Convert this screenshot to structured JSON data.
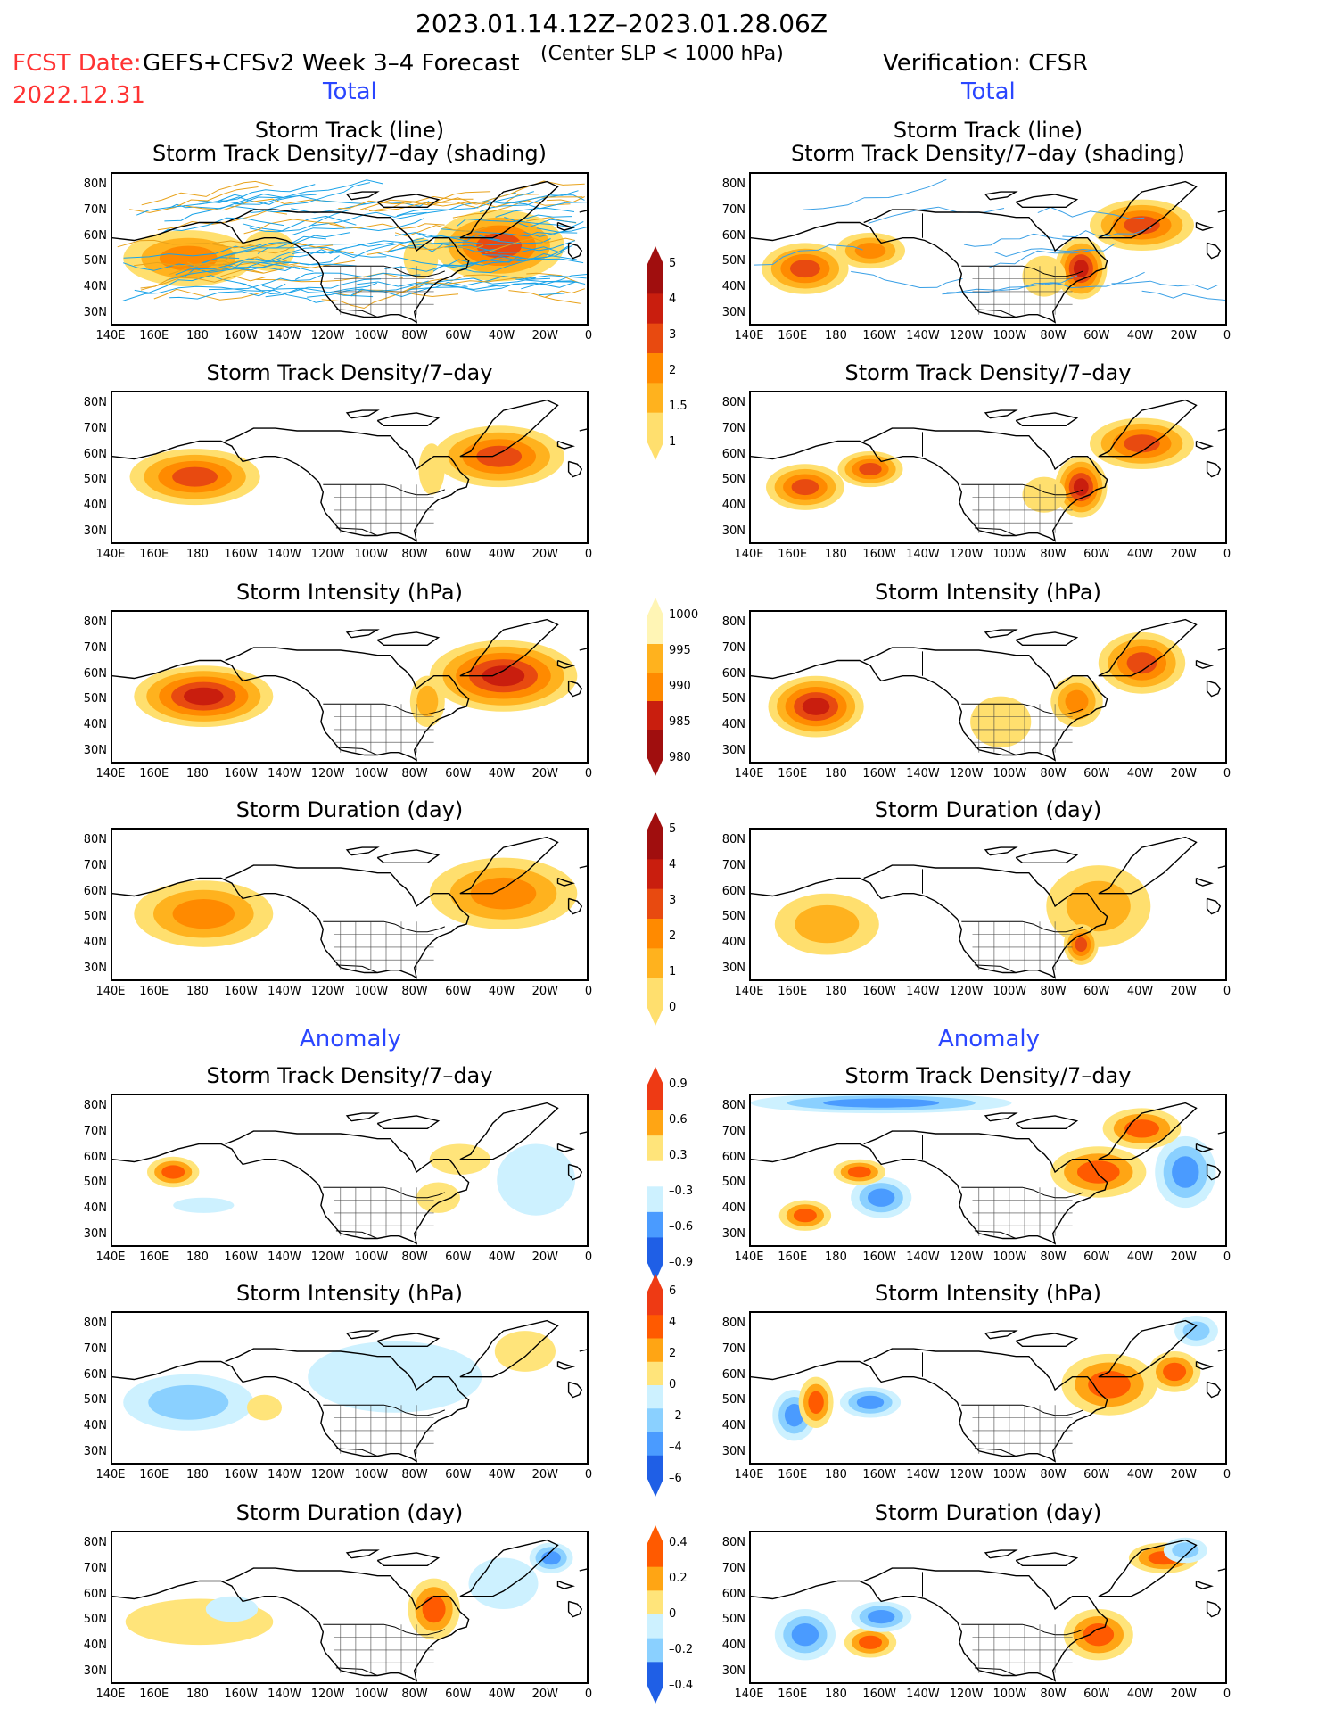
{
  "header": {
    "date_range": "2023.01.14.12Z–2023.01.28.06Z",
    "criterion": "(Center SLP < 1000 hPa)",
    "fcst_label": "FCST Date:",
    "fcst_date": "2022.12.31",
    "model": "GEFS+CFSv2 Week 3–4 Forecast",
    "verification": "Verification: CFSR"
  },
  "sections": {
    "total_left": "Total",
    "total_right": "Total",
    "anomaly_left": "Anomaly",
    "anomaly_right": "Anomaly"
  },
  "panel_titles": {
    "track_line": "Storm Track (line)",
    "track_shading": "Storm Track Density/7–day (shading)",
    "density": "Storm Track Density/7–day",
    "intensity": "Storm Intensity (hPa)",
    "duration": "Storm Duration (day)"
  },
  "axes": {
    "lat_ticks": [
      "80N",
      "70N",
      "60N",
      "50N",
      "40N",
      "30N"
    ],
    "lon_ticks": [
      "140E",
      "160E",
      "180",
      "160W",
      "140W",
      "120W",
      "100W",
      "80W",
      "60W",
      "40W",
      "20W",
      "0"
    ]
  },
  "colorbars": {
    "density_total": [
      "5",
      "4",
      "3",
      "2",
      "1.5",
      "1"
    ],
    "intensity_total": [
      "1000",
      "995",
      "990",
      "985",
      "980"
    ],
    "duration_total": [
      "5",
      "4",
      "3",
      "2",
      "1",
      "0"
    ],
    "density_anom": [
      "0.9",
      "0.6",
      "0.3",
      "–0.3",
      "–0.6",
      "–0.9"
    ],
    "intensity_anom": [
      "6",
      "4",
      "2",
      "0",
      "–2",
      "–4",
      "–6"
    ],
    "duration_anom": [
      "0.4",
      "0.2",
      "0",
      "–0.2",
      "–0.4"
    ]
  },
  "palette": {
    "total": [
      "#fff5b5",
      "#ffdf6e",
      "#ffb21e",
      "#ff8a00",
      "#e84a10",
      "#c91e0e",
      "#a00e0e"
    ],
    "anom_pos": [
      "#ffe47a",
      "#ffa514",
      "#ff5a00",
      "#ee3a14"
    ],
    "anom_neg": [
      "#cdf1ff",
      "#8ad0ff",
      "#4a9bff",
      "#1f5fe6"
    ],
    "track_forecast": [
      "#1aa3e8",
      "#e8a21a"
    ],
    "track_observed": "#3aa0e6"
  },
  "chart_data": {
    "type": "heatmap",
    "lon_range": [
      "140E",
      "0"
    ],
    "lat_range": [
      "25N",
      "85N"
    ],
    "panels": [
      {
        "column": "forecast",
        "row": "track_total",
        "blobs": [
          [
            175,
            52,
            30,
            11,
            3
          ],
          [
            212,
            55,
            12,
            8,
            1
          ],
          [
            318,
            57,
            30,
            14,
            4
          ],
          [
            282,
            52,
            8,
            8,
            1
          ]
        ]
      },
      {
        "column": "observed",
        "row": "track_total",
        "blobs": [
          [
            165,
            48,
            20,
            10,
            4
          ],
          [
            195,
            55,
            16,
            7,
            3
          ],
          [
            292,
            48,
            12,
            12,
            5
          ],
          [
            320,
            65,
            24,
            10,
            4
          ],
          [
            275,
            45,
            10,
            8,
            1
          ]
        ]
      },
      {
        "column": "forecast",
        "row": "density_total",
        "blobs": [
          [
            178,
            52,
            30,
            11,
            4
          ],
          [
            318,
            60,
            30,
            12,
            4
          ],
          [
            287,
            55,
            6,
            10,
            1
          ]
        ]
      },
      {
        "column": "observed",
        "row": "density_total",
        "blobs": [
          [
            165,
            48,
            18,
            9,
            4
          ],
          [
            195,
            55,
            15,
            7,
            4
          ],
          [
            292,
            48,
            12,
            12,
            5
          ],
          [
            320,
            65,
            24,
            10,
            4
          ],
          [
            275,
            45,
            10,
            7,
            1
          ]
        ]
      },
      {
        "column": "forecast",
        "row": "intensity_total",
        "blobs": [
          [
            182,
            52,
            32,
            12,
            5
          ],
          [
            320,
            60,
            34,
            14,
            5
          ],
          [
            285,
            50,
            8,
            10,
            2
          ]
        ]
      },
      {
        "column": "observed",
        "row": "intensity_total",
        "blobs": [
          [
            170,
            48,
            22,
            12,
            5
          ],
          [
            320,
            65,
            20,
            12,
            4
          ],
          [
            290,
            50,
            12,
            10,
            3
          ],
          [
            255,
            42,
            14,
            10,
            1
          ]
        ]
      },
      {
        "column": "forecast",
        "row": "duration_total",
        "blobs": [
          [
            182,
            52,
            32,
            13,
            3
          ],
          [
            320,
            60,
            34,
            14,
            3
          ]
        ]
      },
      {
        "column": "observed",
        "row": "duration_total",
        "blobs": [
          [
            175,
            48,
            24,
            12,
            2
          ],
          [
            300,
            55,
            24,
            16,
            2
          ],
          [
            292,
            40,
            8,
            8,
            4
          ]
        ]
      },
      {
        "column": "forecast",
        "row": "density_anom",
        "blobs": [
          [
            168,
            55,
            12,
            6,
            3
          ],
          [
            182,
            42,
            14,
            3,
            -1
          ],
          [
            300,
            60,
            14,
            6,
            1
          ],
          [
            290,
            45,
            10,
            6,
            1
          ],
          [
            335,
            52,
            18,
            14,
            -1
          ]
        ]
      },
      {
        "column": "observed",
        "row": "density_anom",
        "blobs": [
          [
            200,
            82,
            60,
            4,
            -3
          ],
          [
            165,
            38,
            12,
            6,
            3
          ],
          [
            200,
            45,
            14,
            8,
            -3
          ],
          [
            190,
            55,
            12,
            5,
            3
          ],
          [
            300,
            55,
            22,
            10,
            3
          ],
          [
            340,
            55,
            14,
            14,
            -3
          ],
          [
            320,
            72,
            18,
            8,
            3
          ]
        ]
      },
      {
        "column": "forecast",
        "row": "intensity_anom",
        "blobs": [
          [
            175,
            50,
            30,
            11,
            -2
          ],
          [
            270,
            60,
            40,
            14,
            -1
          ],
          [
            210,
            48,
            8,
            5,
            1
          ],
          [
            330,
            70,
            14,
            8,
            1
          ]
        ]
      },
      {
        "column": "observed",
        "row": "intensity_anom",
        "blobs": [
          [
            160,
            45,
            10,
            10,
            -3
          ],
          [
            170,
            50,
            8,
            10,
            3
          ],
          [
            195,
            50,
            14,
            6,
            -3
          ],
          [
            305,
            57,
            22,
            12,
            3
          ],
          [
            345,
            78,
            10,
            6,
            -2
          ],
          [
            335,
            62,
            12,
            8,
            3
          ]
        ]
      },
      {
        "column": "forecast",
        "row": "duration_anom",
        "blobs": [
          [
            180,
            50,
            34,
            9,
            1
          ],
          [
            195,
            55,
            12,
            5,
            -1
          ],
          [
            288,
            55,
            12,
            12,
            3
          ],
          [
            320,
            65,
            16,
            10,
            -1
          ],
          [
            342,
            75,
            10,
            6,
            -3
          ]
        ]
      },
      {
        "column": "observed",
        "row": "duration_anom",
        "blobs": [
          [
            165,
            45,
            14,
            10,
            -3
          ],
          [
            195,
            42,
            12,
            6,
            3
          ],
          [
            200,
            52,
            14,
            6,
            -3
          ],
          [
            300,
            45,
            16,
            10,
            3
          ],
          [
            330,
            75,
            16,
            6,
            3
          ],
          [
            340,
            78,
            10,
            5,
            -2
          ]
        ]
      }
    ]
  }
}
